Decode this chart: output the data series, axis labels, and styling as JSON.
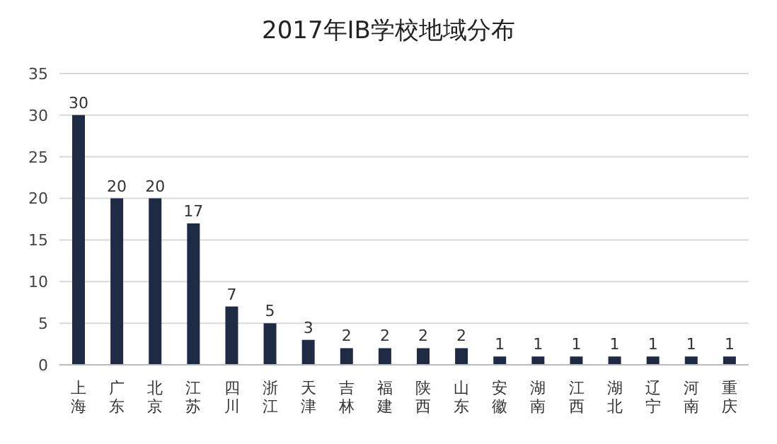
{
  "chart_data": {
    "type": "bar",
    "title": "2017年IB学校地域分布",
    "categories": [
      "上海",
      "广东",
      "北京",
      "江苏",
      "四川",
      "浙江",
      "天津",
      "吉林",
      "福建",
      "陕西",
      "山东",
      "安徽",
      "湖南",
      "江西",
      "湖北",
      "辽宁",
      "河南",
      "重庆"
    ],
    "values": [
      30,
      20,
      20,
      17,
      7,
      5,
      3,
      2,
      2,
      2,
      2,
      1,
      1,
      1,
      1,
      1,
      1,
      1
    ],
    "color": "#1f2a44",
    "ylim": [
      0,
      35
    ],
    "yticks": [
      0,
      5,
      10,
      15,
      20,
      25,
      30,
      35
    ],
    "grid": "y",
    "data_labels": true
  }
}
